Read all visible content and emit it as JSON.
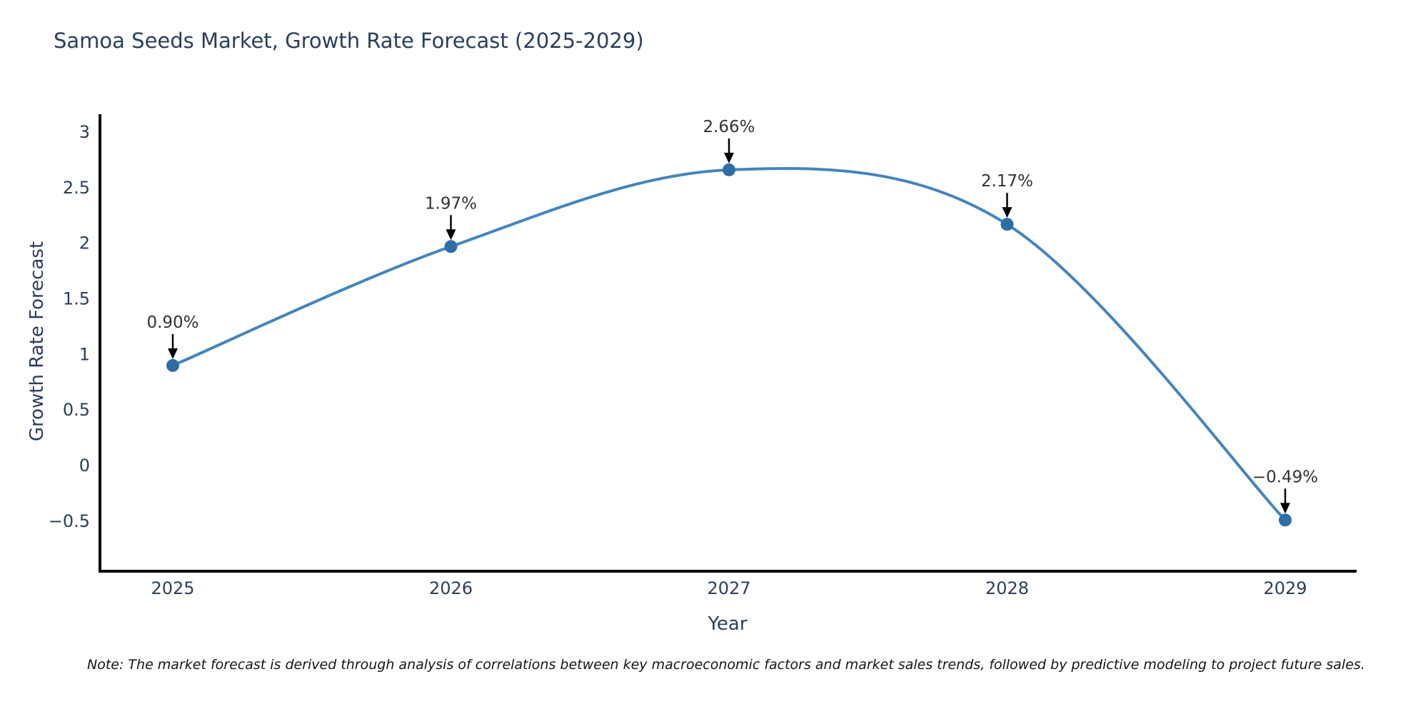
{
  "page": {
    "title": "Samoa Seeds Market, Growth Rate Forecast (2025-2029)",
    "note": "Note: The market forecast is derived through analysis of correlations between key macroeconomic factors and market sales trends, followed by predictive modeling to project future sales."
  },
  "chart_data": {
    "type": "line",
    "title": "Samoa Seeds Market, Growth Rate Forecast (2025-2029)",
    "xlabel": "Year",
    "ylabel": "Growth Rate Forecast",
    "categories": [
      "2025",
      "2026",
      "2027",
      "2028",
      "2029"
    ],
    "series": [
      {
        "name": "Growth Rate Forecast",
        "values": [
          0.9,
          1.97,
          2.66,
          2.17,
          -0.49
        ],
        "point_labels": [
          "0.90%",
          "1.97%",
          "2.66%",
          "2.17%",
          "−0.49%"
        ]
      }
    ],
    "ytick_values": [
      3,
      2.5,
      2,
      1.5,
      1,
      0.5,
      0,
      -0.5
    ],
    "ytick_labels": [
      "3",
      "2.5",
      "2",
      "1.5",
      "1",
      "0.5",
      "0",
      "−0.5"
    ],
    "ylim": [
      -0.95,
      3.16
    ],
    "grid": false,
    "legend_position": "none",
    "line_style": "spline",
    "annotation_style": "value-label-with-down-arrow",
    "colors": {
      "line": "#4485bf",
      "marker": "#2f6da5",
      "axis": "#000000",
      "tick_text": "#2a3f5f",
      "title_text": "#2a3f5f",
      "annotation_text": "#333333",
      "arrow": "#000000",
      "background": "#ffffff"
    }
  }
}
